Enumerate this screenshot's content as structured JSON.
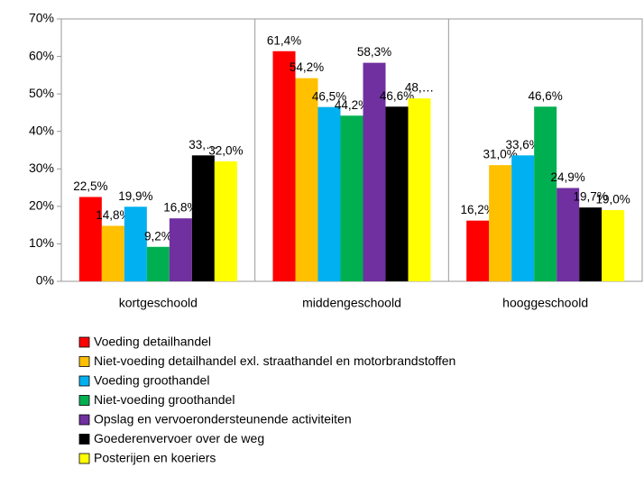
{
  "chart_data": {
    "type": "bar",
    "categories": [
      "kortgeschoold",
      "middengeschoold",
      "hooggeschoold"
    ],
    "series": [
      {
        "name": "Voeding detailhandel",
        "color": "#ff0000",
        "values": [
          22.5,
          61.4,
          16.2
        ],
        "value_labels": [
          "22,5%",
          "61,4%",
          "16,2%"
        ]
      },
      {
        "name": "Niet-voeding detailhandel exl. straathandel en motorbrandstoffen",
        "color": "#ffc000",
        "values": [
          14.8,
          54.2,
          31.0
        ],
        "value_labels": [
          "14,8%",
          "54,2%",
          "31,0%"
        ]
      },
      {
        "name": "Voeding groothandel",
        "color": "#00b0f0",
        "values": [
          19.9,
          46.5,
          33.6
        ],
        "value_labels": [
          "19,9%",
          "46,5%",
          "33,6%"
        ]
      },
      {
        "name": "Niet-voeding groothandel",
        "color": "#00b050",
        "values": [
          9.2,
          44.2,
          46.6
        ],
        "value_labels": [
          "9,2%",
          "44,2%",
          "46,6%"
        ]
      },
      {
        "name": "Opslag en vervoerondersteunende activiteiten",
        "color": "#7030a0",
        "values": [
          16.8,
          58.3,
          24.9
        ],
        "value_labels": [
          "16,8%",
          "58,3%",
          "24,9%"
        ]
      },
      {
        "name": "Goederenvervoer over de weg",
        "color": "#000000",
        "values": [
          33.6,
          46.6,
          19.7
        ],
        "value_labels": [
          "33,…",
          "46,6%",
          "19,7%"
        ]
      },
      {
        "name": "Posterijen en koeriers",
        "color": "#ffff00",
        "values": [
          32.0,
          48.8,
          19.0
        ],
        "value_labels": [
          "32,0%",
          "48,…",
          "19,0%"
        ]
      }
    ],
    "ylim": [
      0,
      70
    ],
    "yticks": [
      {
        "value": 0,
        "label": "0%"
      },
      {
        "value": 10,
        "label": "10%"
      },
      {
        "value": 20,
        "label": "20%"
      },
      {
        "value": 30,
        "label": "30%"
      },
      {
        "value": 40,
        "label": "40%"
      },
      {
        "value": 50,
        "label": "50%"
      },
      {
        "value": 60,
        "label": "60%"
      },
      {
        "value": 70,
        "label": "70%"
      }
    ],
    "legend": "bottom"
  }
}
